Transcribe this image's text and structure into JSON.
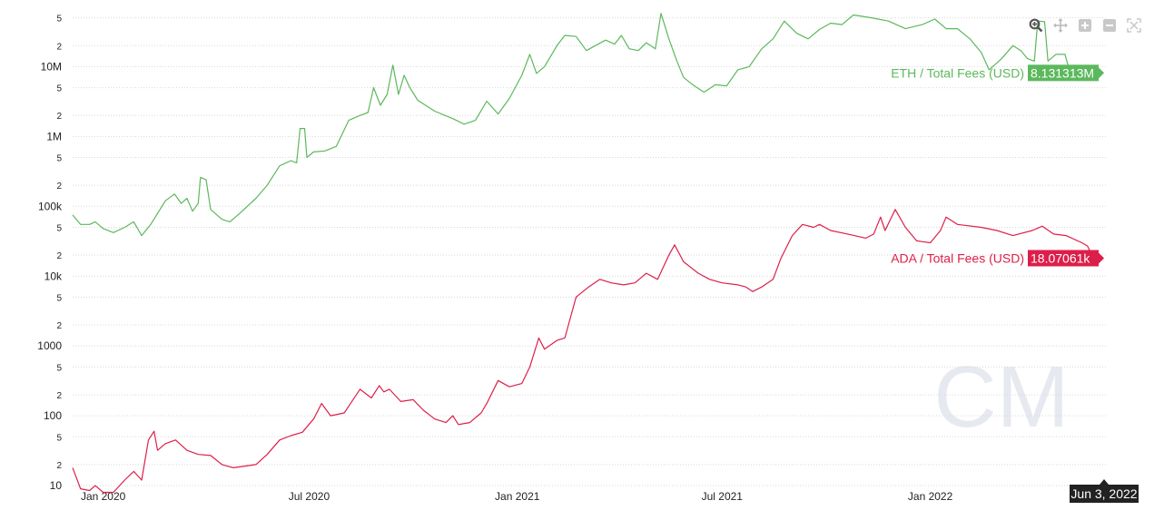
{
  "toolbar": {
    "icons": [
      "zoom-icon",
      "pan-icon",
      "zoom-in-icon",
      "zoom-out-icon",
      "reset-zoom-icon"
    ]
  },
  "watermark": "CM",
  "crosshair_date": "Jun 3, 2022",
  "colors": {
    "eth": "#5cb85c",
    "ada": "#dc1f4a",
    "grid": "#d8d8d8",
    "watermark": "#e6e9ef",
    "date_badge": "#222222"
  },
  "chart_data": {
    "type": "line",
    "y_scale": "log",
    "ylim": [
      7,
      90000000
    ],
    "xlim": [
      "2019-12-05",
      "2022-06-06"
    ],
    "x_ticks": [
      {
        "date": "2020-01-01",
        "label": "Jan 2020"
      },
      {
        "date": "2020-07-01",
        "label": "Jul 2020"
      },
      {
        "date": "2021-01-01",
        "label": "Jan 2021"
      },
      {
        "date": "2021-07-01",
        "label": "Jul 2021"
      },
      {
        "date": "2022-01-01",
        "label": "Jan 2022"
      }
    ],
    "y_major_ticks": [
      {
        "value": 10,
        "label": "10"
      },
      {
        "value": 100,
        "label": "100"
      },
      {
        "value": 1000,
        "label": "1000"
      },
      {
        "value": 10000,
        "label": "10k"
      },
      {
        "value": 100000,
        "label": "100k"
      },
      {
        "value": 1000000,
        "label": "1M"
      },
      {
        "value": 10000000,
        "label": "10M"
      }
    ],
    "y_minor_ticks": [
      {
        "value": 20,
        "label": "2"
      },
      {
        "value": 50,
        "label": "5"
      },
      {
        "value": 200,
        "label": "2"
      },
      {
        "value": 500,
        "label": "5"
      },
      {
        "value": 2000,
        "label": "2"
      },
      {
        "value": 5000,
        "label": "5"
      },
      {
        "value": 20000,
        "label": "2"
      },
      {
        "value": 50000,
        "label": "5"
      },
      {
        "value": 200000,
        "label": "2"
      },
      {
        "value": 500000,
        "label": "5"
      },
      {
        "value": 2000000,
        "label": "2"
      },
      {
        "value": 5000000,
        "label": "5"
      },
      {
        "value": 20000000,
        "label": "2"
      },
      {
        "value": 50000000,
        "label": "5"
      }
    ],
    "series": [
      {
        "name": "ETH / Total Fees (USD)",
        "last_value_label": "8.131313M",
        "color": "#5cb85c",
        "points": [
          [
            "2019-12-05",
            75000
          ],
          [
            "2019-12-12",
            55000
          ],
          [
            "2019-12-20",
            55000
          ],
          [
            "2019-12-25",
            60000
          ],
          [
            "2020-01-01",
            48000
          ],
          [
            "2020-01-10",
            42000
          ],
          [
            "2020-01-20",
            50000
          ],
          [
            "2020-01-28",
            60000
          ],
          [
            "2020-02-04",
            38000
          ],
          [
            "2020-02-12",
            55000
          ],
          [
            "2020-02-25",
            120000
          ],
          [
            "2020-03-04",
            150000
          ],
          [
            "2020-03-10",
            110000
          ],
          [
            "2020-03-15",
            130000
          ],
          [
            "2020-03-20",
            85000
          ],
          [
            "2020-03-25",
            110000
          ],
          [
            "2020-03-27",
            260000
          ],
          [
            "2020-04-01",
            240000
          ],
          [
            "2020-04-05",
            90000
          ],
          [
            "2020-04-15",
            65000
          ],
          [
            "2020-04-22",
            60000
          ],
          [
            "2020-05-01",
            80000
          ],
          [
            "2020-05-15",
            130000
          ],
          [
            "2020-05-25",
            200000
          ],
          [
            "2020-06-05",
            380000
          ],
          [
            "2020-06-15",
            450000
          ],
          [
            "2020-06-20",
            420000
          ],
          [
            "2020-06-23",
            1300000
          ],
          [
            "2020-06-27",
            1300000
          ],
          [
            "2020-06-29",
            500000
          ],
          [
            "2020-07-05",
            600000
          ],
          [
            "2020-07-15",
            620000
          ],
          [
            "2020-07-25",
            720000
          ],
          [
            "2020-08-05",
            1700000
          ],
          [
            "2020-08-15",
            2000000
          ],
          [
            "2020-08-22",
            2200000
          ],
          [
            "2020-08-27",
            5000000
          ],
          [
            "2020-09-02",
            2800000
          ],
          [
            "2020-09-08",
            4000000
          ],
          [
            "2020-09-13",
            10500000
          ],
          [
            "2020-09-18",
            4000000
          ],
          [
            "2020-09-23",
            7500000
          ],
          [
            "2020-09-28",
            5000000
          ],
          [
            "2020-10-05",
            3300000
          ],
          [
            "2020-10-20",
            2300000
          ],
          [
            "2020-11-05",
            1800000
          ],
          [
            "2020-11-15",
            1500000
          ],
          [
            "2020-11-25",
            1700000
          ],
          [
            "2020-12-05",
            3200000
          ],
          [
            "2020-12-15",
            2100000
          ],
          [
            "2020-12-25",
            3500000
          ],
          [
            "2021-01-05",
            7500000
          ],
          [
            "2021-01-12",
            15000000
          ],
          [
            "2021-01-18",
            8000000
          ],
          [
            "2021-01-25",
            10000000
          ],
          [
            "2021-02-05",
            20000000
          ],
          [
            "2021-02-12",
            28000000
          ],
          [
            "2021-02-22",
            27000000
          ],
          [
            "2021-03-03",
            17000000
          ],
          [
            "2021-03-20",
            24000000
          ],
          [
            "2021-03-28",
            21000000
          ],
          [
            "2021-04-03",
            28000000
          ],
          [
            "2021-04-10",
            18000000
          ],
          [
            "2021-04-18",
            17000000
          ],
          [
            "2021-04-25",
            22000000
          ],
          [
            "2021-05-03",
            18000000
          ],
          [
            "2021-05-08",
            58000000
          ],
          [
            "2021-05-15",
            25000000
          ],
          [
            "2021-05-22",
            12000000
          ],
          [
            "2021-05-28",
            7000000
          ],
          [
            "2021-06-05",
            5500000
          ],
          [
            "2021-06-15",
            4300000
          ],
          [
            "2021-06-25",
            5500000
          ],
          [
            "2021-07-05",
            5300000
          ],
          [
            "2021-07-15",
            9000000
          ],
          [
            "2021-07-25",
            10000000
          ],
          [
            "2021-08-05",
            18000000
          ],
          [
            "2021-08-15",
            25000000
          ],
          [
            "2021-08-25",
            45000000
          ],
          [
            "2021-09-05",
            30000000
          ],
          [
            "2021-09-15",
            25000000
          ],
          [
            "2021-09-25",
            34000000
          ],
          [
            "2021-10-05",
            42000000
          ],
          [
            "2021-10-15",
            40000000
          ],
          [
            "2021-10-25",
            55000000
          ],
          [
            "2021-11-10",
            50000000
          ],
          [
            "2021-11-25",
            45000000
          ],
          [
            "2021-12-10",
            35000000
          ],
          [
            "2021-12-25",
            40000000
          ],
          [
            "2022-01-05",
            48000000
          ],
          [
            "2022-01-15",
            35000000
          ],
          [
            "2022-01-25",
            35000000
          ],
          [
            "2022-02-05",
            25000000
          ],
          [
            "2022-02-15",
            16000000
          ],
          [
            "2022-02-22",
            9000000
          ],
          [
            "2022-03-05",
            13000000
          ],
          [
            "2022-03-15",
            20000000
          ],
          [
            "2022-03-22",
            17000000
          ],
          [
            "2022-03-28",
            13000000
          ],
          [
            "2022-04-03",
            12000000
          ],
          [
            "2022-04-06",
            45000000
          ],
          [
            "2022-04-12",
            44000000
          ],
          [
            "2022-04-15",
            12000000
          ],
          [
            "2022-04-22",
            15000000
          ],
          [
            "2022-04-30",
            15000000
          ],
          [
            "2022-05-05",
            7800000
          ],
          [
            "2022-05-15",
            7500000
          ],
          [
            "2022-05-25",
            8000000
          ],
          [
            "2022-06-03",
            8131313
          ]
        ]
      },
      {
        "name": "ADA / Total Fees (USD)",
        "last_value_label": "18.07061k",
        "color": "#dc1f4a",
        "points": [
          [
            "2019-12-05",
            18
          ],
          [
            "2019-12-12",
            9
          ],
          [
            "2019-12-20",
            8.5
          ],
          [
            "2019-12-25",
            10
          ],
          [
            "2020-01-01",
            8
          ],
          [
            "2020-01-10",
            8
          ],
          [
            "2020-01-20",
            12
          ],
          [
            "2020-01-28",
            16
          ],
          [
            "2020-02-04",
            12
          ],
          [
            "2020-02-10",
            45
          ],
          [
            "2020-02-15",
            60
          ],
          [
            "2020-02-18",
            32
          ],
          [
            "2020-02-25",
            40
          ],
          [
            "2020-03-05",
            45
          ],
          [
            "2020-03-15",
            32
          ],
          [
            "2020-03-25",
            28
          ],
          [
            "2020-04-05",
            27
          ],
          [
            "2020-04-15",
            20
          ],
          [
            "2020-04-25",
            18
          ],
          [
            "2020-05-05",
            19
          ],
          [
            "2020-05-15",
            20
          ],
          [
            "2020-05-25",
            28
          ],
          [
            "2020-06-05",
            45
          ],
          [
            "2020-06-15",
            52
          ],
          [
            "2020-06-25",
            58
          ],
          [
            "2020-07-05",
            90
          ],
          [
            "2020-07-12",
            150
          ],
          [
            "2020-07-20",
            100
          ],
          [
            "2020-08-01",
            110
          ],
          [
            "2020-08-15",
            240
          ],
          [
            "2020-08-25",
            180
          ],
          [
            "2020-09-01",
            270
          ],
          [
            "2020-09-05",
            220
          ],
          [
            "2020-09-10",
            240
          ],
          [
            "2020-09-20",
            160
          ],
          [
            "2020-10-01",
            170
          ],
          [
            "2020-10-10",
            120
          ],
          [
            "2020-10-20",
            90
          ],
          [
            "2020-10-30",
            80
          ],
          [
            "2020-11-05",
            100
          ],
          [
            "2020-11-10",
            75
          ],
          [
            "2020-11-20",
            80
          ],
          [
            "2020-11-30",
            110
          ],
          [
            "2020-12-05",
            150
          ],
          [
            "2020-12-15",
            320
          ],
          [
            "2020-12-25",
            260
          ],
          [
            "2021-01-05",
            290
          ],
          [
            "2021-01-12",
            500
          ],
          [
            "2021-01-20",
            1300
          ],
          [
            "2021-01-25",
            900
          ],
          [
            "2021-02-05",
            1200
          ],
          [
            "2021-02-12",
            1300
          ],
          [
            "2021-02-22",
            5000
          ],
          [
            "2021-03-05",
            7000
          ],
          [
            "2021-03-15",
            9000
          ],
          [
            "2021-03-25",
            8000
          ],
          [
            "2021-04-05",
            7500
          ],
          [
            "2021-04-15",
            8000
          ],
          [
            "2021-04-25",
            11000
          ],
          [
            "2021-05-05",
            9000
          ],
          [
            "2021-05-15",
            20000
          ],
          [
            "2021-05-20",
            28000
          ],
          [
            "2021-05-28",
            16000
          ],
          [
            "2021-06-10",
            11000
          ],
          [
            "2021-06-20",
            9000
          ],
          [
            "2021-07-01",
            8000
          ],
          [
            "2021-07-15",
            7500
          ],
          [
            "2021-07-22",
            7000
          ],
          [
            "2021-07-28",
            6000
          ],
          [
            "2021-08-05",
            7000
          ],
          [
            "2021-08-15",
            9000
          ],
          [
            "2021-08-22",
            18000
          ],
          [
            "2021-09-01",
            38000
          ],
          [
            "2021-09-10",
            55000
          ],
          [
            "2021-09-20",
            50000
          ],
          [
            "2021-09-25",
            55000
          ],
          [
            "2021-10-05",
            45000
          ],
          [
            "2021-10-20",
            40000
          ],
          [
            "2021-11-05",
            35000
          ],
          [
            "2021-11-12",
            40000
          ],
          [
            "2021-11-18",
            70000
          ],
          [
            "2021-11-22",
            45000
          ],
          [
            "2021-12-01",
            90000
          ],
          [
            "2021-12-10",
            50000
          ],
          [
            "2021-12-20",
            32000
          ],
          [
            "2022-01-01",
            30000
          ],
          [
            "2022-01-10",
            45000
          ],
          [
            "2022-01-15",
            70000
          ],
          [
            "2022-01-25",
            55000
          ],
          [
            "2022-02-15",
            50000
          ],
          [
            "2022-03-01",
            45000
          ],
          [
            "2022-03-15",
            38000
          ],
          [
            "2022-04-01",
            45000
          ],
          [
            "2022-04-10",
            52000
          ],
          [
            "2022-04-20",
            40000
          ],
          [
            "2022-05-01",
            38000
          ],
          [
            "2022-05-15",
            30000
          ],
          [
            "2022-05-20",
            27000
          ],
          [
            "2022-05-25",
            18000
          ],
          [
            "2022-06-03",
            18070.61
          ]
        ]
      }
    ]
  }
}
